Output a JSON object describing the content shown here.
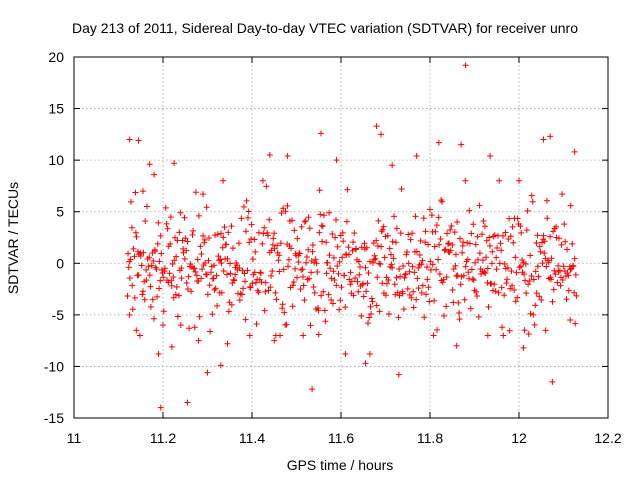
{
  "chart_data": {
    "type": "scatter",
    "title": "Day 213 of 2011, Sidereal Day-to-day VTEC variation (SDTVAR) for receiver unro",
    "xlabel": "GPS time / hours",
    "ylabel": "SDTVAR / TECUs",
    "xlim": [
      11,
      12.2
    ],
    "ylim": [
      -15,
      20
    ],
    "xticks": [
      "11",
      "11.2",
      "11.4",
      "11.6",
      "11.8",
      "12",
      "12.2"
    ],
    "yticks": [
      "-15",
      "-10",
      "-5",
      "0",
      "5",
      "10",
      "15",
      "20"
    ],
    "grid": true,
    "marker": "+",
    "color": "#ff0000",
    "series": [
      {
        "name": "SDTVAR",
        "sampling_interval_hours": 0.00139,
        "x_start": 11.12,
        "x_end": 12.13,
        "points": [
          [
            11.125,
            12.0
          ],
          [
            11.145,
            11.9
          ],
          [
            11.17,
            9.6
          ],
          [
            11.18,
            8.6
          ],
          [
            11.19,
            -8.8
          ],
          [
            11.195,
            -14.0
          ],
          [
            11.225,
            9.7
          ],
          [
            11.255,
            -13.5
          ],
          [
            11.29,
            6.7
          ],
          [
            11.3,
            -10.6
          ],
          [
            11.335,
            8.0
          ],
          [
            11.345,
            -7.8
          ],
          [
            11.44,
            10.5
          ],
          [
            11.48,
            10.4
          ],
          [
            11.555,
            12.6
          ],
          [
            11.535,
            -12.2
          ],
          [
            11.59,
            10.0
          ],
          [
            11.68,
            13.3
          ],
          [
            11.69,
            12.5
          ],
          [
            11.715,
            9.5
          ],
          [
            11.73,
            -10.8
          ],
          [
            11.77,
            10.4
          ],
          [
            11.82,
            11.7
          ],
          [
            11.87,
            11.5
          ],
          [
            11.88,
            19.2
          ],
          [
            11.935,
            10.4
          ],
          [
            12.07,
            12.3
          ],
          [
            12.075,
            -11.5
          ],
          [
            12.055,
            12.0
          ],
          [
            12.125,
            10.8
          ],
          [
            11.125,
            -5.0
          ],
          [
            11.14,
            -6.5
          ],
          [
            11.155,
            7.0
          ],
          [
            11.2,
            -6.0
          ],
          [
            11.22,
            -8.1
          ],
          [
            11.24,
            -6.0
          ],
          [
            11.28,
            -7.5
          ],
          [
            11.33,
            -9.9
          ],
          [
            11.395,
            -7.0
          ],
          [
            11.45,
            -7.5
          ],
          [
            11.515,
            -7.0
          ],
          [
            11.61,
            -8.8
          ],
          [
            11.655,
            -9.7
          ],
          [
            11.665,
            -8.8
          ],
          [
            11.86,
            -8.0
          ],
          [
            11.93,
            -7.0
          ],
          [
            12.01,
            -8.2
          ],
          [
            12.06,
            -6.5
          ],
          [
            12.115,
            -5.5
          ],
          [
            11.55,
            -6.9
          ]
        ]
      }
    ]
  }
}
